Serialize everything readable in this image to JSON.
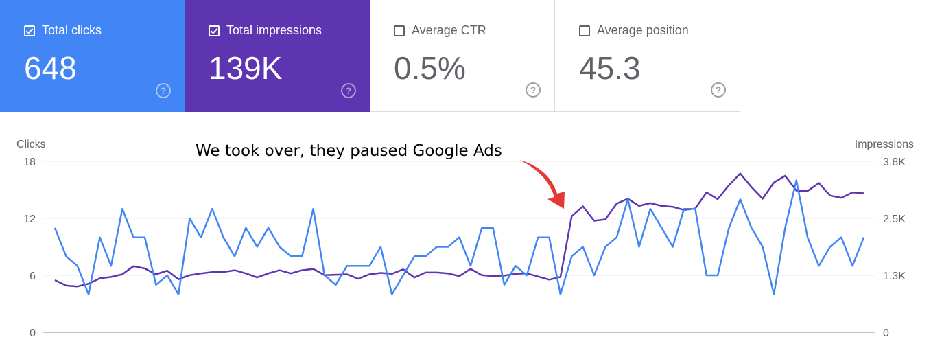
{
  "metrics": [
    {
      "label": "Total clicks",
      "value": "648",
      "checked": true,
      "color": "#4285f4"
    },
    {
      "label": "Total impressions",
      "value": "139K",
      "checked": true,
      "color": "#5e35b1"
    },
    {
      "label": "Average CTR",
      "value": "0.5%",
      "checked": false
    },
    {
      "label": "Average position",
      "value": "45.3",
      "checked": false
    }
  ],
  "help_glyph": "?",
  "chart_data": {
    "type": "line",
    "ylabel_left": "Clicks",
    "ylabel_right": "Impressions",
    "yticks_left": [
      "0",
      "6",
      "12",
      "18"
    ],
    "yticks_right": [
      "0",
      "1.3K",
      "2.5K",
      "3.8K"
    ],
    "ylim_left": [
      0,
      18
    ],
    "ylim_right": [
      0,
      3800
    ],
    "grid": true,
    "annotation": "We took over, they paused Google Ads",
    "annotation_arrow_color": "#e53935",
    "series": [
      {
        "name": "Total clicks",
        "axis": "left",
        "color": "#4285f4",
        "values": [
          11,
          8,
          7,
          4,
          10,
          7,
          13,
          10,
          10,
          5,
          6,
          4,
          12,
          10,
          13,
          10,
          8,
          11,
          9,
          11,
          9,
          8,
          8,
          13,
          6,
          5,
          7,
          7,
          7,
          9,
          4,
          6,
          8,
          8,
          9,
          9,
          10,
          7,
          11,
          11,
          5,
          7,
          6,
          10,
          10,
          4,
          8,
          9,
          6,
          9,
          10,
          14,
          9,
          13,
          11,
          9,
          13,
          13,
          6,
          6,
          11,
          14,
          11,
          9,
          4,
          11,
          16,
          10,
          7,
          9,
          10,
          7,
          10
        ]
      },
      {
        "name": "Total impressions",
        "axis": "right",
        "color": "#5e35b1",
        "values": [
          1160,
          1040,
          1020,
          1080,
          1200,
          1230,
          1290,
          1470,
          1420,
          1290,
          1370,
          1180,
          1270,
          1310,
          1340,
          1340,
          1380,
          1310,
          1220,
          1310,
          1380,
          1310,
          1380,
          1410,
          1270,
          1280,
          1290,
          1190,
          1290,
          1320,
          1300,
          1400,
          1220,
          1330,
          1330,
          1310,
          1250,
          1410,
          1270,
          1250,
          1260,
          1300,
          1310,
          1240,
          1170,
          1230,
          2580,
          2800,
          2480,
          2510,
          2860,
          2970,
          2810,
          2870,
          2810,
          2790,
          2720,
          2750,
          3110,
          2960,
          3270,
          3530,
          3230,
          2970,
          3330,
          3480,
          3150,
          3140,
          3320,
          3040,
          2990,
          3110,
          3090
        ]
      }
    ]
  }
}
